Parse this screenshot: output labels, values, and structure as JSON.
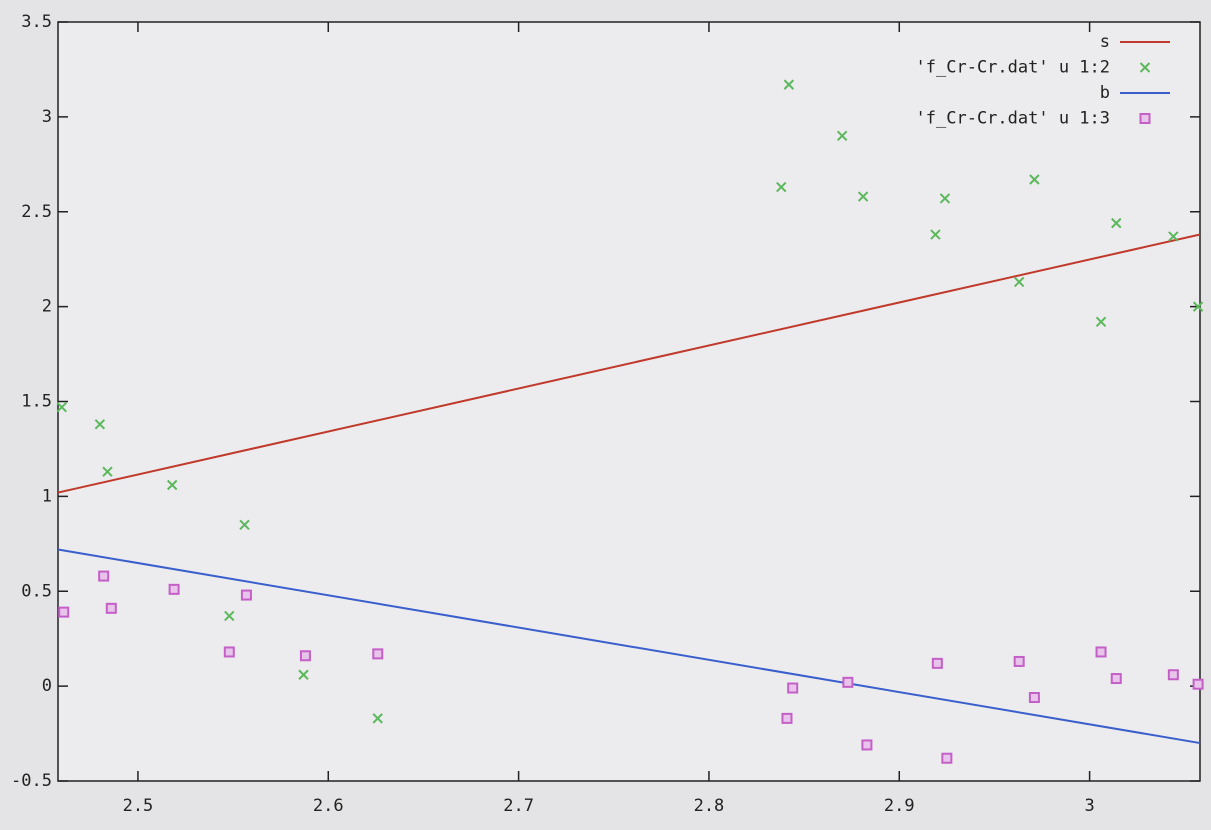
{
  "chart_data": {
    "type": "scatter",
    "xlim": [
      2.458,
      3.058
    ],
    "xticks": [
      2.5,
      2.6,
      2.7,
      2.8,
      2.9,
      3
    ],
    "ylim": [
      -0.5,
      3.5
    ],
    "yticks": [
      -0.5,
      0,
      0.5,
      1,
      1.5,
      2,
      2.5,
      3,
      3.5
    ],
    "legend": "top-right",
    "series": [
      {
        "name": "s",
        "color": "#c0392b",
        "style": "line",
        "x": [
          2.458,
          3.058
        ],
        "values": [
          1.02,
          2.38
        ]
      },
      {
        "name": "'f_Cr-Cr.dat' u 1:2",
        "color": "#5cb85c",
        "style": "points",
        "marker": "x",
        "x": [
          2.46,
          2.48,
          2.484,
          2.518,
          2.556,
          2.548,
          2.587,
          2.626,
          2.838,
          2.842,
          2.87,
          2.881,
          2.919,
          2.924,
          2.963,
          2.971,
          3.006,
          3.014,
          3.044,
          3.057
        ],
        "values": [
          1.47,
          1.38,
          1.13,
          1.06,
          0.85,
          0.37,
          0.06,
          -0.17,
          2.63,
          3.17,
          2.9,
          2.58,
          2.38,
          2.57,
          2.13,
          2.67,
          1.92,
          2.44,
          2.37,
          2.0
        ]
      },
      {
        "name": "b",
        "color": "#3a5fcd",
        "style": "line",
        "x": [
          2.458,
          3.058
        ],
        "values": [
          0.72,
          -0.3
        ]
      },
      {
        "name": "'f_Cr-Cr.dat' u 1:3",
        "color": "#c45fc8",
        "style": "points",
        "marker": "square",
        "x": [
          2.461,
          2.482,
          2.486,
          2.519,
          2.548,
          2.557,
          2.588,
          2.626,
          2.841,
          2.844,
          2.873,
          2.883,
          2.92,
          2.925,
          2.963,
          2.971,
          3.006,
          3.014,
          3.044,
          3.057
        ],
        "values": [
          0.39,
          0.58,
          0.41,
          0.51,
          0.18,
          0.48,
          0.16,
          0.17,
          -0.17,
          -0.01,
          0.02,
          -0.31,
          0.12,
          -0.38,
          0.13,
          -0.06,
          0.18,
          0.04,
          0.06,
          0.01
        ]
      }
    ]
  }
}
